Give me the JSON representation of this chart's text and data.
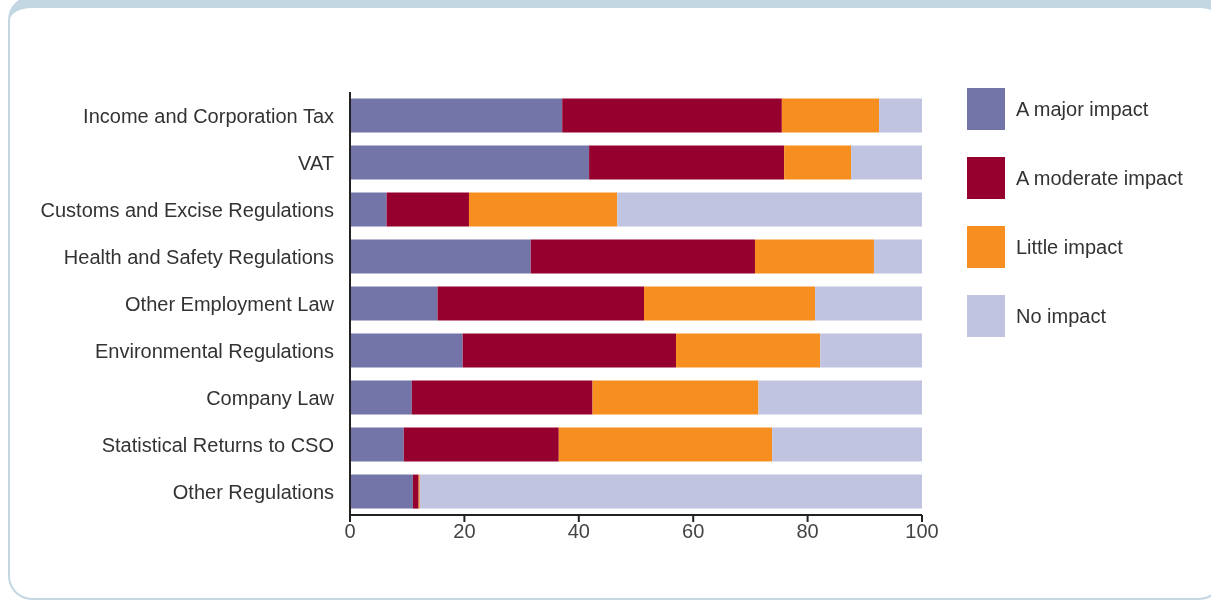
{
  "chart_data": {
    "type": "bar",
    "orientation": "horizontal",
    "stacked": true,
    "categories": [
      "Income and Corporation Tax",
      "VAT",
      "Customs and Excise Regulations",
      "Health and Safety Regulations",
      "Other Employment Law",
      "Environmental Regulations",
      "Company Law",
      "Statistical Returns to CSO",
      "Other Regulations"
    ],
    "series": [
      {
        "name": "A major impact",
        "color": "#7375a8",
        "values": [
          37.1,
          41.8,
          6.4,
          31.6,
          15.3,
          19.7,
          10.8,
          9.4,
          11.0
        ]
      },
      {
        "name": "A moderate impact",
        "color": "#96002e",
        "values": [
          38.4,
          34.1,
          14.4,
          39.2,
          36.1,
          37.3,
          31.6,
          27.1,
          1.0
        ]
      },
      {
        "name": "Little impact",
        "color": "#f68f1f",
        "values": [
          17.0,
          11.7,
          25.9,
          20.8,
          29.9,
          25.2,
          29.0,
          37.3,
          0.2
        ]
      },
      {
        "name": "No impact",
        "color": "#c0c4e0",
        "values": [
          7.5,
          12.4,
          53.3,
          8.4,
          18.7,
          17.8,
          28.6,
          26.2,
          87.8
        ]
      }
    ],
    "xlim": [
      0,
      100
    ],
    "xticks": [
      0,
      20,
      40,
      60,
      80,
      100
    ],
    "legend": "right"
  }
}
